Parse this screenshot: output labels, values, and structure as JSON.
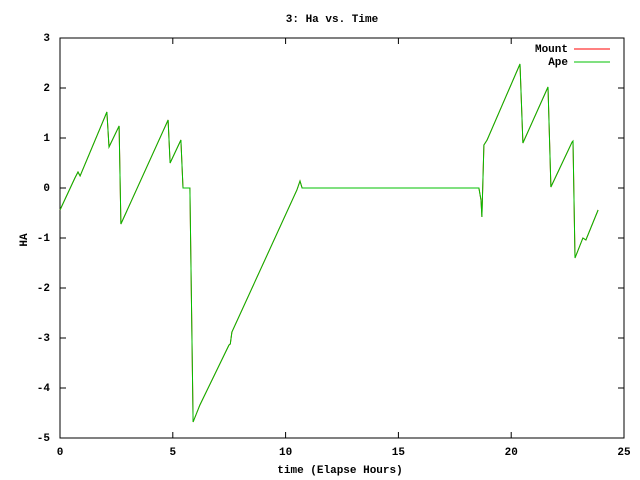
{
  "chart_data": {
    "type": "line",
    "title": "3: Ha vs. Time",
    "x_label": "time (Elapse Hours)",
    "y_label": "HA",
    "x": [
      0,
      0.66,
      0.8,
      0.89,
      2.08,
      2.17,
      2.62,
      2.7,
      4.79,
      4.88,
      5.36,
      5.45,
      5.76,
      5.9,
      6.2,
      7.49,
      7.55,
      7.62,
      10.5,
      10.64,
      10.73,
      18.57,
      18.66,
      18.7,
      18.79,
      18.93,
      20.39,
      20.52,
      21.63,
      21.76,
      22.7,
      22.74,
      22.83,
      23.18,
      23.31,
      23.85
    ],
    "series": [
      {
        "name": "Mount",
        "color": "#ff0000",
        "values": [
          -0.44,
          0.2,
          0.32,
          0.24,
          1.52,
          0.82,
          1.24,
          -0.72,
          1.36,
          0.5,
          0.96,
          0,
          0,
          -4.68,
          -4.34,
          -3.14,
          -3.12,
          -2.88,
          -0.04,
          0.14,
          0,
          0,
          -0.24,
          -0.58,
          0.86,
          0.96,
          2.48,
          0.9,
          2.02,
          0.02,
          0.92,
          0.94,
          -1.4,
          -1.0,
          -1.04,
          -0.44
        ]
      },
      {
        "name": "Ape",
        "color": "#00c000",
        "values": [
          -0.44,
          0.2,
          0.32,
          0.24,
          1.52,
          0.82,
          1.24,
          -0.72,
          1.36,
          0.5,
          0.96,
          0,
          0,
          -4.68,
          -4.34,
          -3.14,
          -3.12,
          -2.88,
          -0.04,
          0.14,
          0,
          0,
          -0.24,
          -0.58,
          0.86,
          0.96,
          2.48,
          0.9,
          2.02,
          0.02,
          0.92,
          0.94,
          -1.4,
          -1.0,
          -1.04,
          -0.44
        ]
      }
    ],
    "xlim": [
      0,
      25
    ],
    "xticks": [
      0,
      5,
      10,
      15,
      20,
      25
    ],
    "ylim": [
      -5,
      3
    ],
    "yticks": [
      -5,
      -4,
      -3,
      -2,
      -1,
      0,
      1,
      2,
      3
    ],
    "legend": "top-right"
  }
}
